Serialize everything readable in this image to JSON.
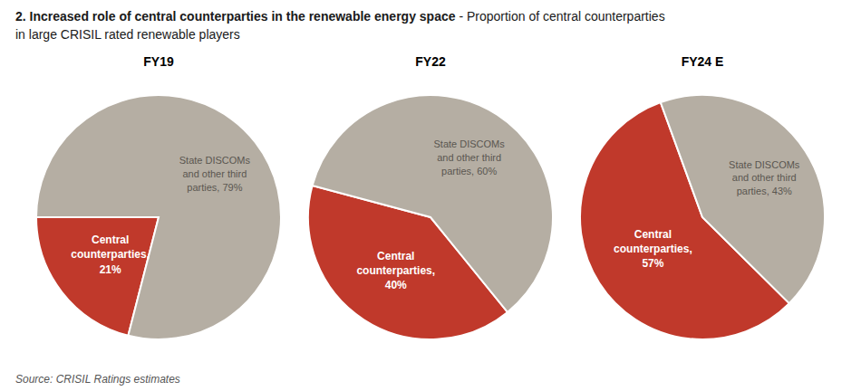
{
  "title": "2.  Increased role of central counterparties in the renewable energy space - Proportion of central counterparties",
  "subtitle": "in large CRISIL rated renewable players",
  "annotations": [
    "Source: CRISIL Ratings estimates"
  ],
  "chart_data": [
    {
      "type": "pie",
      "title": "FY19",
      "values": [
        21,
        79
      ],
      "value_labels": [
        "Central\ncounterparties,\n21%",
        "State DISCOMs\nand other third\nparties, 79%"
      ],
      "colors": [
        "#C0392B",
        "#B5AEA3"
      ],
      "data_labels": true
    },
    {
      "type": "pie",
      "title": "FY22",
      "values": [
        40,
        60
      ],
      "value_labels": [
        "Central\ncounterparties,\n40%",
        "State DISCOMs\nand other third\nparties, 60%"
      ],
      "colors": [
        "#C0392B",
        "#B5AEA3"
      ],
      "data_labels": true
    },
    {
      "type": "pie",
      "title": "FY24 E",
      "values": [
        57,
        43
      ],
      "value_labels": [
        "Central\ncounterparties,\n57%",
        "State DISCOMs\nand other third\nparties, 43%"
      ],
      "colors": [
        "#C0392B",
        "#B5AEA3"
      ],
      "data_labels": true
    }
  ]
}
